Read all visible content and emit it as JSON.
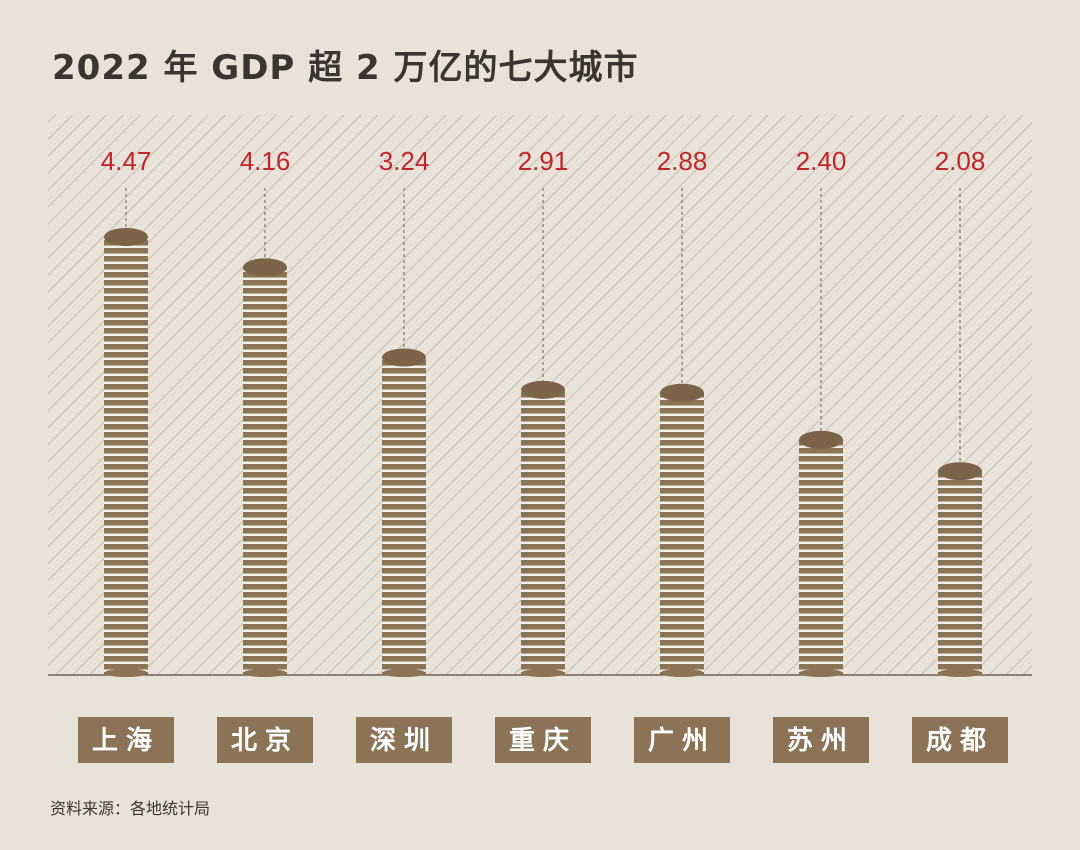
{
  "chart_data": {
    "type": "bar",
    "title": "2022 年 GDP 超 2 万亿的七大城市",
    "categories": [
      "上海",
      "北京",
      "深圳",
      "重庆",
      "广州",
      "苏州",
      "成都"
    ],
    "values": [
      4.47,
      4.16,
      3.24,
      2.91,
      2.88,
      2.4,
      2.08
    ],
    "value_labels": [
      "4.47",
      "4.16",
      "3.24",
      "2.91",
      "2.88",
      "2.40",
      "2.08"
    ],
    "xlabel": "",
    "ylabel": "",
    "ylim": [
      0,
      5
    ],
    "unit_hint": "万亿元",
    "grid": false,
    "legend": "none"
  },
  "footer": {
    "source": "资料来源：各地统计局"
  },
  "colors": {
    "background": "#e8e2d8",
    "coin": "#8b7355",
    "coin_dark": "#7a6348",
    "value_label": "#c0252b",
    "title": "#3b3530",
    "category_label_bg": "#8b7355",
    "category_label_text": "#ffffff",
    "hatch": "#c7bfb2"
  }
}
